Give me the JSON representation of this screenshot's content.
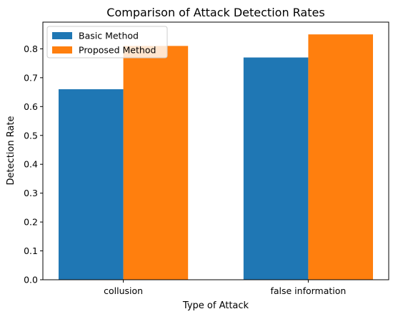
{
  "chart_data": {
    "type": "bar",
    "title": "Comparison of Attack Detection Rates",
    "xlabel": "Type of Attack",
    "ylabel": "Detection Rate",
    "categories": [
      "collusion",
      "false information"
    ],
    "series": [
      {
        "name": "Basic Method",
        "values": [
          0.66,
          0.77
        ],
        "color": "#1f77b4"
      },
      {
        "name": "Proposed Method",
        "values": [
          0.81,
          0.85
        ],
        "color": "#ff7f0e"
      }
    ],
    "ylim": [
      0,
      0.8925
    ],
    "yticks": [
      "0.0",
      "0.1",
      "0.2",
      "0.3",
      "0.4",
      "0.5",
      "0.6",
      "0.7",
      "0.8"
    ],
    "grid": false,
    "legend_position": "top-left"
  }
}
